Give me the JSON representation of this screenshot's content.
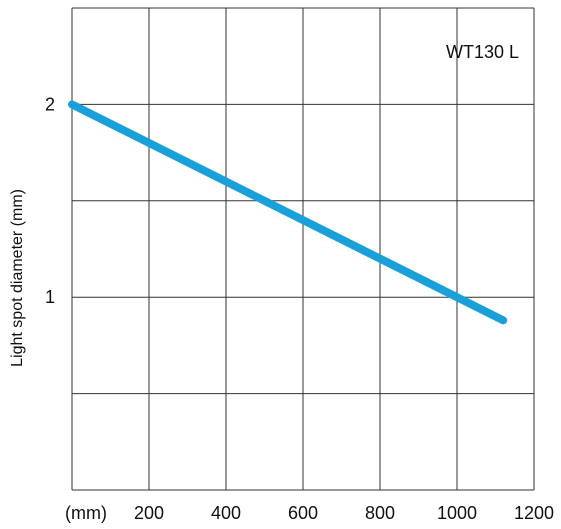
{
  "chart_data": {
    "type": "line",
    "title": "",
    "xlabel": "(mm)",
    "ylabel": "Light spot diameter (mm)",
    "xlim": [
      0,
      1200
    ],
    "ylim": [
      0,
      2.5
    ],
    "x_ticks": [
      200,
      400,
      600,
      800,
      1000,
      1200
    ],
    "y_ticks": [
      1,
      2
    ],
    "x_grid": [
      0,
      200,
      400,
      600,
      800,
      1000,
      1200
    ],
    "y_grid": [
      0,
      0.5,
      1,
      1.5,
      2,
      2.5
    ],
    "grid": true,
    "annotation": "WT130 L",
    "series": [
      {
        "x": [
          0,
          1120
        ],
        "y": [
          2.0,
          0.88
        ],
        "color": "#1aa0d8"
      }
    ]
  }
}
